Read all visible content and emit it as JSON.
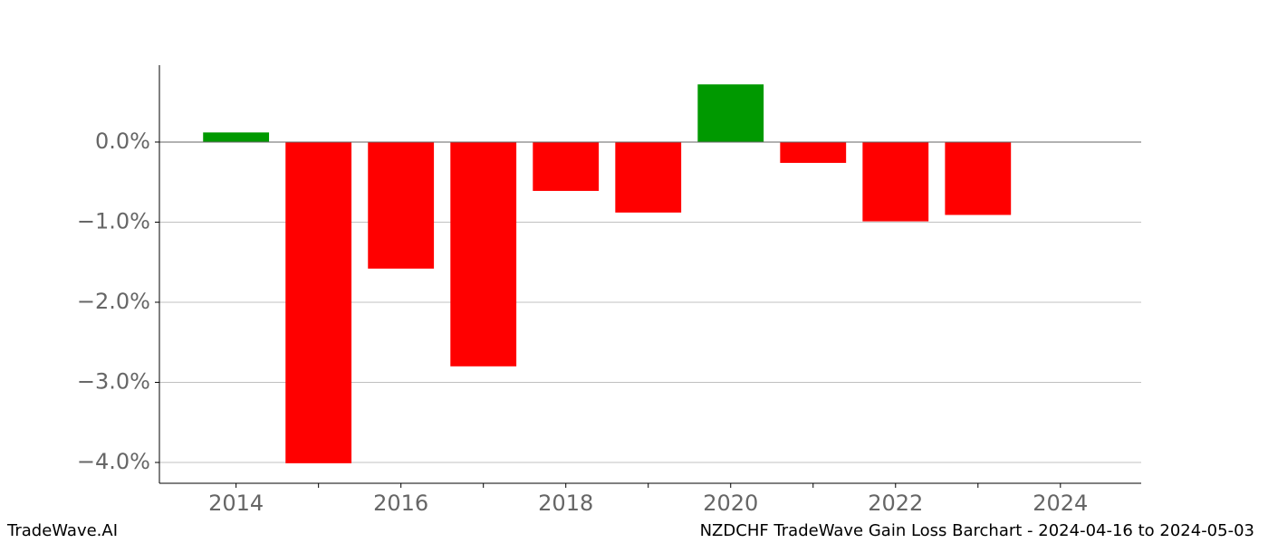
{
  "chart_data": {
    "type": "bar",
    "title": "NZDCHF TradeWave Gain Loss Barchart - 2024-04-16 to 2024-05-03",
    "brand": "TradeWave.AI",
    "x": [
      2014,
      2015,
      2016,
      2017,
      2018,
      2019,
      2020,
      2021,
      2022,
      2023
    ],
    "values": [
      0.12,
      -4.01,
      -1.58,
      -2.8,
      -0.61,
      -0.88,
      0.72,
      -0.26,
      -0.99,
      -0.91
    ],
    "colors": [
      "#009900",
      "#ff0000",
      "#ff0000",
      "#ff0000",
      "#ff0000",
      "#ff0000",
      "#009900",
      "#ff0000",
      "#ff0000",
      "#ff0000"
    ],
    "xlim": [
      2013.07,
      2024.98
    ],
    "xticks": [
      2014,
      2016,
      2018,
      2020,
      2022,
      2024
    ],
    "xminorticks": [
      2015,
      2017,
      2019,
      2021,
      2023
    ],
    "ylim": [
      -4.26,
      0.96
    ],
    "yticks": [
      {
        "value": 0,
        "label": "0.0%"
      },
      {
        "value": -1,
        "label": "−1.0%"
      },
      {
        "value": -2,
        "label": "−2.0%"
      },
      {
        "value": -3,
        "label": "−3.0%"
      },
      {
        "value": -4,
        "label": "−4.0%"
      }
    ],
    "hline": 0,
    "grid": true
  }
}
